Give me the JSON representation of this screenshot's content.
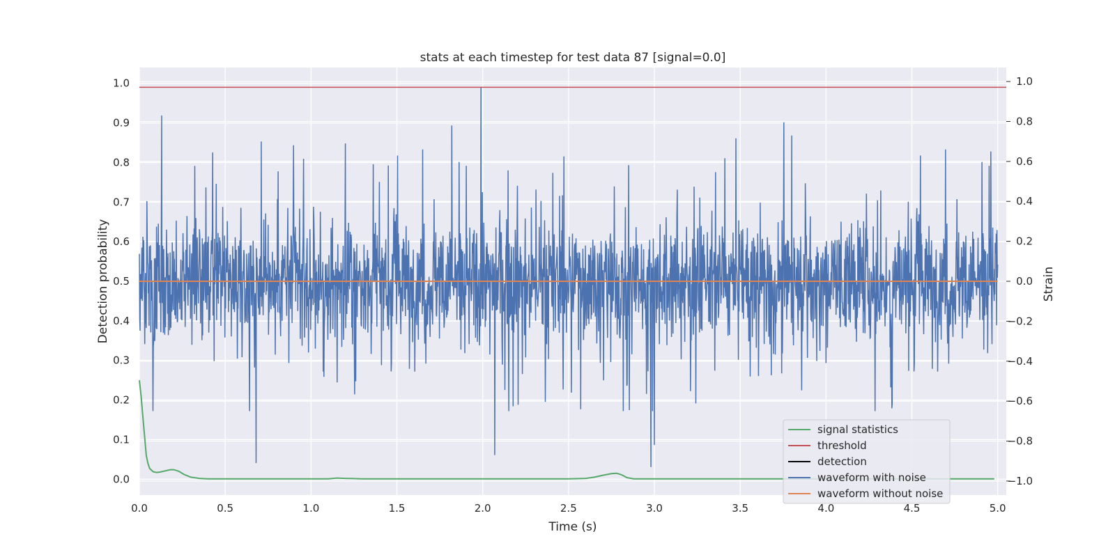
{
  "chart_data": {
    "type": "line",
    "title": "stats at each timestep for test data 87 [signal=0.0]",
    "xlabel": "Time (s)",
    "ylabel": "Detection probability",
    "y2label": "Strain",
    "xlim": [
      0.0,
      5.05
    ],
    "ylim": [
      -0.04,
      1.04
    ],
    "y2lim": [
      -1.07,
      1.07
    ],
    "x_ticks": [
      0.0,
      0.5,
      1.0,
      1.5,
      2.0,
      2.5,
      3.0,
      3.5,
      4.0,
      4.5,
      5.0
    ],
    "x_tick_labels": [
      "0.0",
      "0.5",
      "1.0",
      "1.5",
      "2.0",
      "2.5",
      "3.0",
      "3.5",
      "4.0",
      "4.5",
      "5.0"
    ],
    "y_ticks": [
      0.0,
      0.1,
      0.2,
      0.3,
      0.4,
      0.5,
      0.6,
      0.7,
      0.8,
      0.9,
      1.0
    ],
    "y_tick_labels": [
      "0.0",
      "0.1",
      "0.2",
      "0.3",
      "0.4",
      "0.5",
      "0.6",
      "0.7",
      "0.8",
      "0.9",
      "1.0"
    ],
    "y2_ticks": [
      -1.0,
      -0.8,
      -0.6,
      -0.4,
      -0.2,
      0.0,
      0.2,
      0.4,
      0.6,
      0.8,
      1.0
    ],
    "y2_tick_labels": [
      "−1.0",
      "−0.8",
      "−0.6",
      "−0.4",
      "−0.2",
      "0.0",
      "0.2",
      "0.4",
      "0.6",
      "0.8",
      "1.0"
    ],
    "grid": true,
    "legend_position": "lower-right",
    "background": "#eaeaf2",
    "series": [
      {
        "name": "signal statistics",
        "axis": "left",
        "color": "#55a868",
        "x": [
          0.0,
          0.01,
          0.02,
          0.03,
          0.04,
          0.05,
          0.06,
          0.08,
          0.1,
          0.12,
          0.15,
          0.18,
          0.2,
          0.23,
          0.26,
          0.3,
          0.35,
          0.4,
          0.5,
          0.7,
          1.0,
          1.1,
          1.15,
          1.2,
          1.3,
          1.5,
          2.0,
          2.2,
          2.5,
          2.6,
          2.65,
          2.7,
          2.75,
          2.78,
          2.81,
          2.84,
          2.88,
          2.95,
          3.5,
          4.0,
          4.5,
          4.98
        ],
        "y": [
          0.25,
          0.21,
          0.16,
          0.11,
          0.06,
          0.04,
          0.027,
          0.019,
          0.017,
          0.018,
          0.021,
          0.024,
          0.024,
          0.02,
          0.012,
          0.005,
          0.002,
          0.001,
          0.001,
          0.001,
          0.001,
          0.001,
          0.003,
          0.002,
          0.001,
          0.001,
          0.001,
          0.001,
          0.001,
          0.002,
          0.005,
          0.01,
          0.014,
          0.015,
          0.011,
          0.004,
          0.001,
          0.001,
          0.001,
          0.001,
          0.001,
          0.001
        ]
      },
      {
        "name": "threshold",
        "axis": "left",
        "color": "#c44e52",
        "x": [
          0.0,
          5.05
        ],
        "y": [
          0.99,
          0.99
        ]
      },
      {
        "name": "detection",
        "axis": "left",
        "color": "#000000",
        "x": [],
        "y": []
      },
      {
        "name": "waveform with noise",
        "axis": "right",
        "color": "#4c72b0",
        "x_range": [
          0.0,
          5.0
        ],
        "envelope_y": [
          -0.6,
          0.75
        ],
        "peaks": [
          {
            "x": 0.13,
            "y": 0.83
          },
          {
            "x": 0.68,
            "y": -0.91
          },
          {
            "x": 0.71,
            "y": 0.7
          },
          {
            "x": 1.2,
            "y": 0.69
          },
          {
            "x": 1.82,
            "y": 0.78
          },
          {
            "x": 1.99,
            "y": 0.97
          },
          {
            "x": 2.07,
            "y": -0.87
          },
          {
            "x": 2.98,
            "y": -0.93
          },
          {
            "x": 3.0,
            "y": -0.82
          },
          {
            "x": 3.8,
            "y": 0.73
          },
          {
            "x": 4.96,
            "y": 0.65
          }
        ]
      },
      {
        "name": "waveform without noise",
        "axis": "right",
        "color": "#dd8452",
        "x": [
          0.0,
          5.0
        ],
        "y": [
          0.0,
          0.0
        ]
      }
    ]
  }
}
